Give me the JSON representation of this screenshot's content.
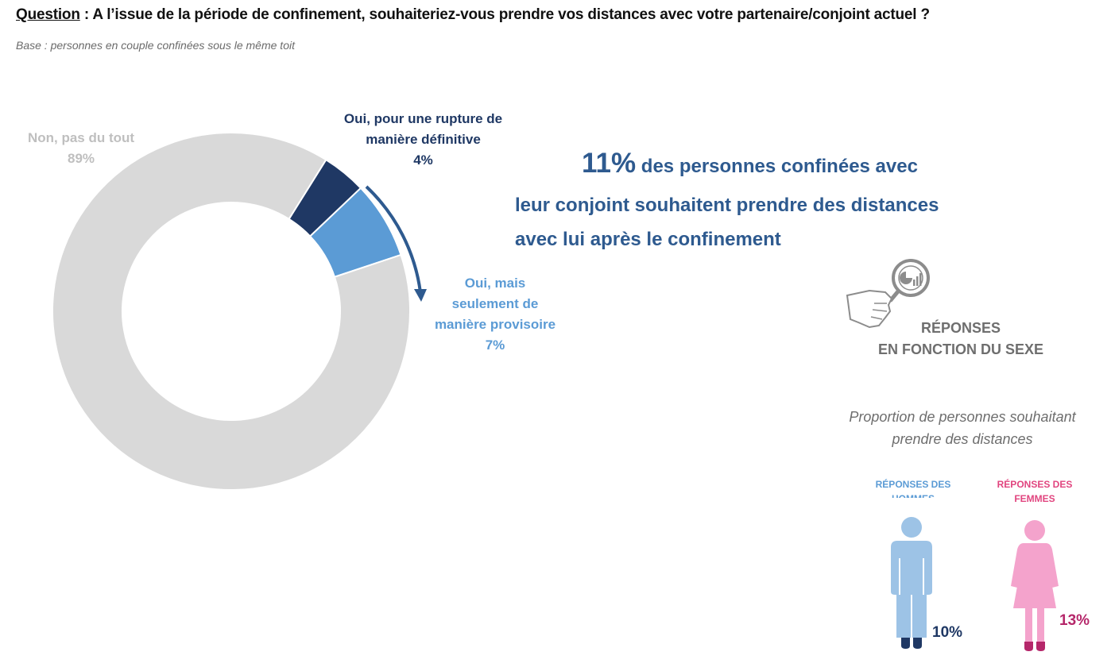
{
  "header": {
    "question_word": "Question",
    "question_text": " : A l’issue de la période de confinement, souhaiteriez-vous prendre vos distances avec votre partenaire/conjoint actuel ?",
    "base": "Base : personnes en couple confinées sous le même toit"
  },
  "chart_data": {
    "type": "pie",
    "variant": "donut",
    "categories": [
      "Non, pas du tout",
      "Oui, pour une rupture de manière définitive",
      "Oui, mais seulement de manière provisoire"
    ],
    "values": [
      89,
      4,
      7
    ],
    "unit": "%",
    "colors": [
      "#d9d9d9",
      "#1f3864",
      "#5b9bd5"
    ],
    "labels": [
      {
        "lines": [
          "Non, pas du tout",
          "89%"
        ]
      },
      {
        "lines": [
          "Oui, pour une rupture de",
          "manière définitive",
          "4%"
        ]
      },
      {
        "lines": [
          "Oui, mais",
          "seulement de",
          "manière provisoire",
          "7%"
        ]
      }
    ]
  },
  "headline": {
    "big": "11%",
    "line1_rest": " des personnes confinées avec",
    "line2": "leur conjoint souhaitent prendre des distances",
    "line3": "avec lui après le confinement"
  },
  "gender_section": {
    "title_lines": [
      "RÉPONSES",
      "EN FONCTION DU SEXE"
    ],
    "subtitle_lines": [
      "Proportion de personnes souhaitant",
      "prendre des distances"
    ],
    "men": {
      "label_lines": [
        "RÉPONSES DES",
        "HOMMES"
      ],
      "value": "10%",
      "color": "#9dc3e6"
    },
    "women": {
      "label_lines": [
        "RÉPONSES DES",
        "FEMMES"
      ],
      "value": "13%",
      "color": "#f4a3cc"
    },
    "icon": "hand-magnifier-chart-icon"
  }
}
